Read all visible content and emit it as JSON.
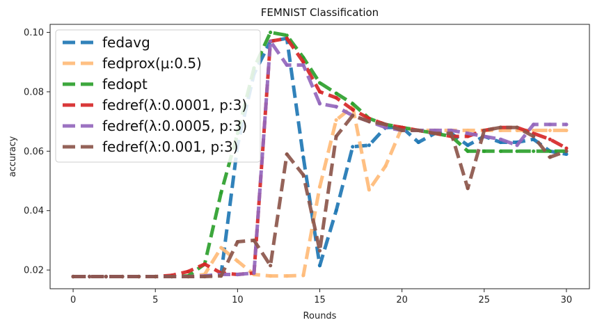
{
  "chart_data": {
    "type": "line",
    "title": "FEMNIST Classification",
    "xlabel": "Rounds",
    "ylabel": "accuracy",
    "xlim": [
      -1.4,
      31.4
    ],
    "ylim": [
      0.0137,
      0.1027
    ],
    "xticks": [
      0,
      5,
      10,
      15,
      20,
      25,
      30
    ],
    "yticks": [
      0.02,
      0.04,
      0.06,
      0.08,
      0.1
    ],
    "ytick_labels": [
      "0.02",
      "0.04",
      "0.06",
      "0.08",
      "0.10"
    ],
    "legend_position": "top-left",
    "x": [
      0,
      1,
      2,
      3,
      4,
      5,
      6,
      7,
      8,
      9,
      10,
      11,
      12,
      13,
      14,
      15,
      16,
      17,
      18,
      19,
      20,
      21,
      22,
      23,
      24,
      25,
      26,
      27,
      28,
      29,
      30
    ],
    "series": [
      {
        "name": "fedavg",
        "color": "#1f77b4",
        "values": [
          0.0178,
          0.0178,
          0.0178,
          0.0178,
          0.0178,
          0.0178,
          0.0178,
          0.0178,
          0.018,
          0.0185,
          0.062,
          0.086,
          0.097,
          0.098,
          0.058,
          0.0215,
          0.04,
          0.0615,
          0.062,
          0.068,
          0.068,
          0.063,
          0.066,
          0.066,
          0.062,
          0.065,
          0.063,
          0.063,
          0.064,
          0.06,
          0.059
        ]
      },
      {
        "name": "fedprox(μ:0.5)",
        "color": "#ffbb78",
        "values": [
          0.0178,
          0.0178,
          0.0178,
          0.0178,
          0.0178,
          0.0178,
          0.0178,
          0.0178,
          0.0185,
          0.0275,
          0.023,
          0.0185,
          0.018,
          0.018,
          0.0182,
          0.048,
          0.0705,
          0.075,
          0.047,
          0.055,
          0.068,
          0.067,
          0.067,
          0.067,
          0.067,
          0.067,
          0.067,
          0.067,
          0.067,
          0.067,
          0.067
        ]
      },
      {
        "name": "fedopt",
        "color": "#2ca02c",
        "values": [
          0.0178,
          0.0178,
          0.0178,
          0.0178,
          0.0178,
          0.0178,
          0.0178,
          0.018,
          0.022,
          0.046,
          0.066,
          0.088,
          0.1,
          0.099,
          0.0915,
          0.083,
          0.0795,
          0.076,
          0.071,
          0.069,
          0.068,
          0.067,
          0.066,
          0.065,
          0.06,
          0.06,
          0.06,
          0.06,
          0.06,
          0.06,
          0.06
        ]
      },
      {
        "name": "fedref(λ:0.0001, p:3)",
        "color": "#d62728",
        "values": [
          0.0178,
          0.0178,
          0.0178,
          0.0178,
          0.0178,
          0.0178,
          0.0182,
          0.0195,
          0.022,
          0.019,
          0.0185,
          0.019,
          0.097,
          0.098,
          0.09,
          0.08,
          0.078,
          0.074,
          0.071,
          0.069,
          0.068,
          0.067,
          0.066,
          0.065,
          0.065,
          0.067,
          0.068,
          0.068,
          0.066,
          0.064,
          0.061
        ]
      },
      {
        "name": "fedref(λ:0.0005, p:3)",
        "color": "#9467bd",
        "values": [
          0.0178,
          0.0178,
          0.0178,
          0.0178,
          0.0178,
          0.0178,
          0.0178,
          0.0178,
          0.018,
          0.0185,
          0.0185,
          0.019,
          0.097,
          0.089,
          0.089,
          0.076,
          0.075,
          0.072,
          0.07,
          0.068,
          0.067,
          0.067,
          0.067,
          0.067,
          0.066,
          0.065,
          0.064,
          0.062,
          0.069,
          0.069,
          0.069
        ]
      },
      {
        "name": "fedref(λ:0.001, p:3)",
        "color": "#8c564b",
        "values": [
          0.0178,
          0.0178,
          0.0178,
          0.0178,
          0.0178,
          0.0178,
          0.0178,
          0.0178,
          0.0178,
          0.018,
          0.0295,
          0.03,
          0.0215,
          0.059,
          0.052,
          0.0265,
          0.065,
          0.072,
          0.07,
          0.069,
          0.067,
          0.067,
          0.066,
          0.066,
          0.0475,
          0.067,
          0.068,
          0.068,
          0.065,
          0.058,
          0.06
        ]
      }
    ]
  }
}
